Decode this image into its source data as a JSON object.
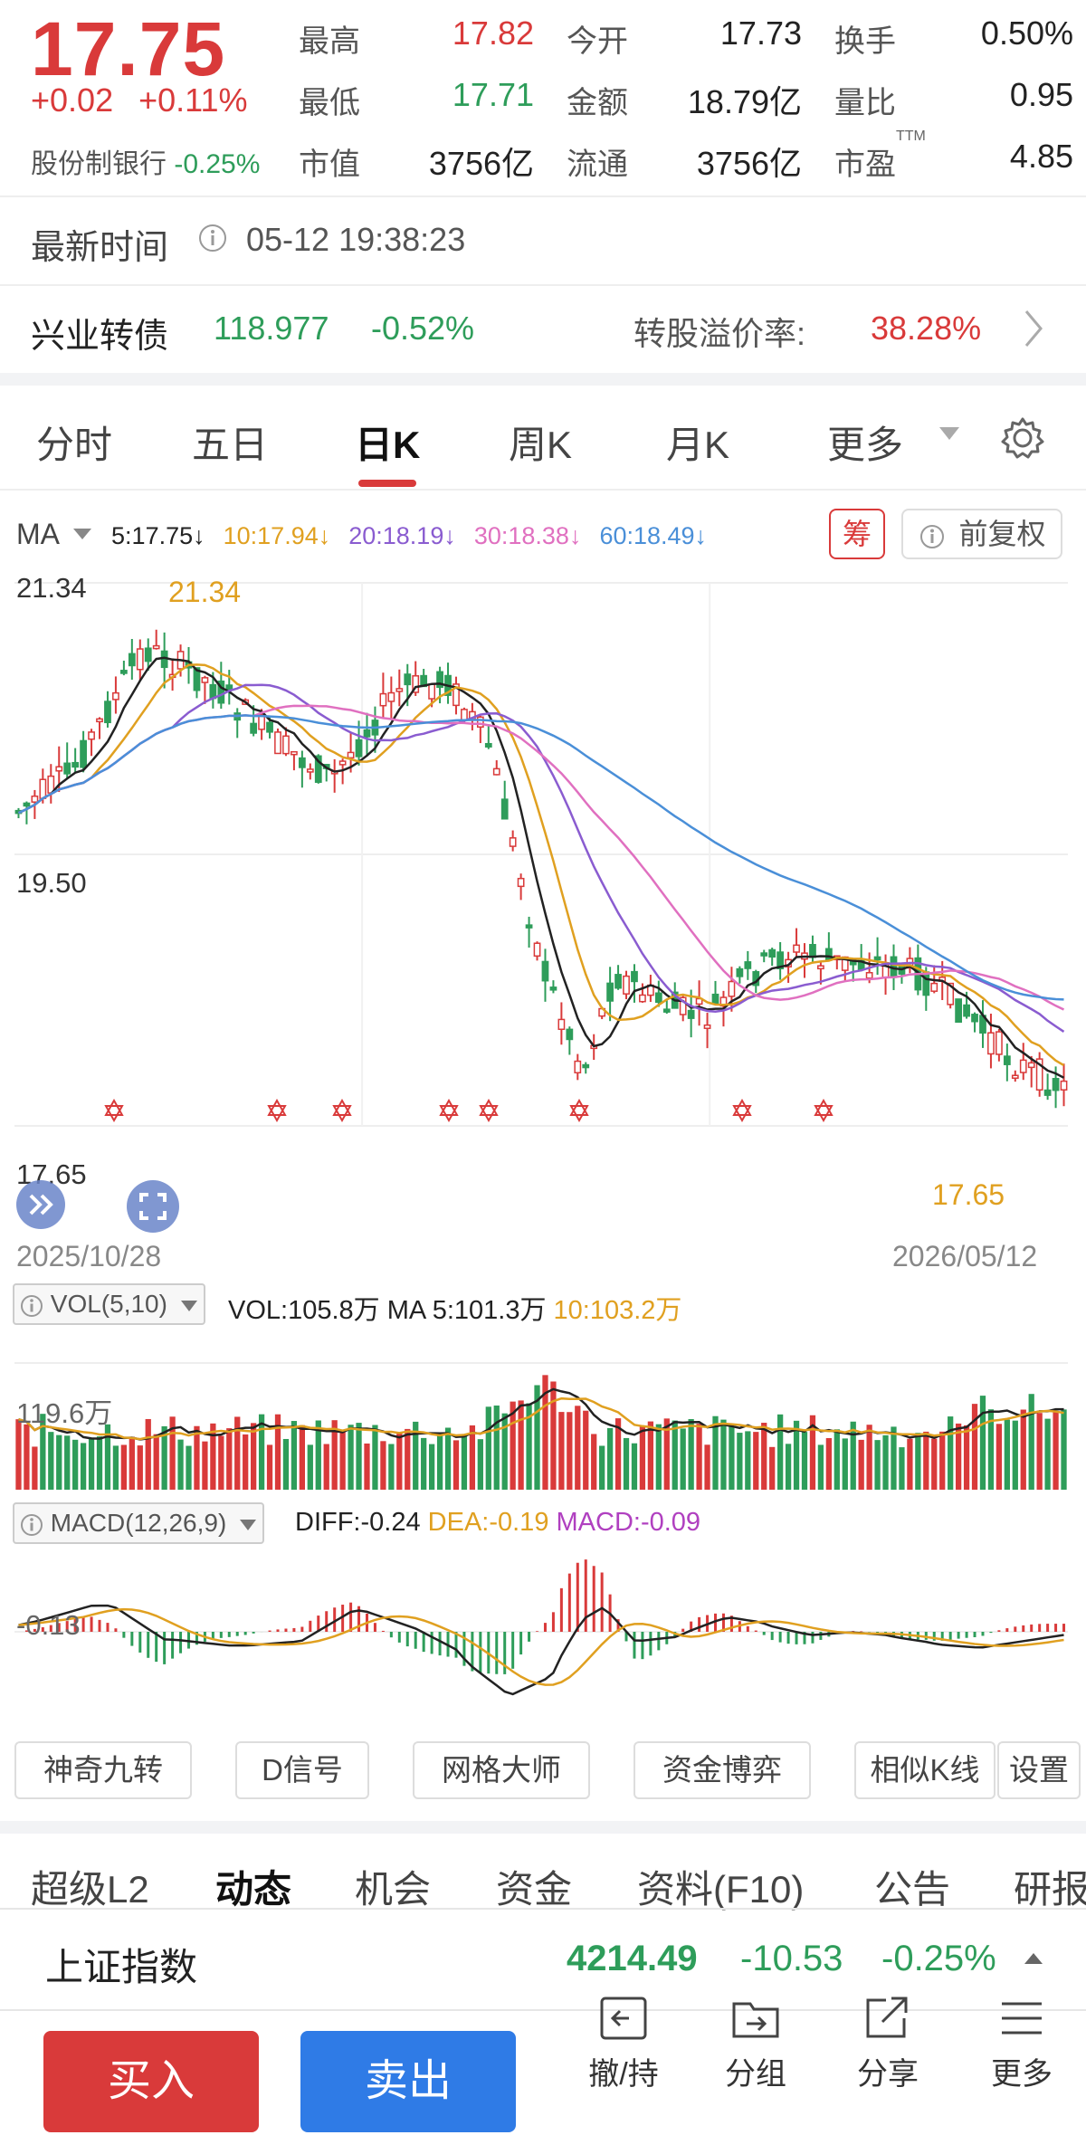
{
  "quote": {
    "price": "17.75",
    "change": "+0.02",
    "change_pct": "+0.11%",
    "sector_name": "股份制银行",
    "sector_pct": "-0.25%",
    "stats": [
      {
        "label": "最高",
        "value": "17.82",
        "tone": "red"
      },
      {
        "label": "今开",
        "value": "17.73",
        "tone": "dark"
      },
      {
        "label": "换手",
        "value": "0.50%",
        "tone": "dark"
      },
      {
        "label": "最低",
        "value": "17.71",
        "tone": "green"
      },
      {
        "label": "金额",
        "value": "18.79亿",
        "tone": "dark"
      },
      {
        "label": "量比",
        "value": "0.95",
        "tone": "dark"
      },
      {
        "label": "市值",
        "value": "3756亿",
        "tone": "dark"
      },
      {
        "label": "流通",
        "value": "3756亿",
        "tone": "dark"
      },
      {
        "label": "市盈",
        "value": "4.85",
        "tone": "dark"
      }
    ],
    "pe_suffix": "TTM"
  },
  "update": {
    "label": "最新时间",
    "time": "05-12 19:38:23"
  },
  "bond": {
    "name": "兴业转债",
    "price": "118.977",
    "pct": "-0.52%",
    "premium_label": "转股溢价率:",
    "premium_value": "38.28%"
  },
  "chart_tabs": [
    "分时",
    "五日",
    "日K",
    "周K",
    "月K",
    "更多"
  ],
  "active_tab": "日K",
  "ma_bar": {
    "label": "MA",
    "items": [
      {
        "text": "5:17.75↓",
        "color": "#222222"
      },
      {
        "text": "10:17.94↓",
        "color": "#e0a020"
      },
      {
        "text": "20:18.19↓",
        "color": "#8a5cd0"
      },
      {
        "text": "30:18.38↓",
        "color": "#e070c0"
      },
      {
        "text": "60:18.49↓",
        "color": "#4a8fd8"
      }
    ],
    "chip_label": "筹",
    "adjust_label": "前复权"
  },
  "kline": {
    "y_high_label": "21.34",
    "y_mid_label": "19.50",
    "y_low_label": "17.65",
    "high_mark": "21.34",
    "low_mark": "17.65",
    "date_start": "2025/10/28",
    "date_end": "2026/05/12"
  },
  "vol": {
    "label": "VOL(5,10)",
    "value": "VOL:105.8万",
    "ma5": "MA 5:101.3万",
    "ma10": "10:103.2万",
    "axis_label": "119.6万"
  },
  "macd": {
    "label": "MACD(12,26,9)",
    "diff": "DIFF:-0.24",
    "dea": "DEA:-0.19",
    "macd": "MACD:-0.09",
    "axis_label": "-0.13"
  },
  "tools": [
    "神奇九转",
    "D信号",
    "网格大师",
    "资金博弈",
    "相似K线",
    "设置"
  ],
  "bottom_tabs": [
    "超级L2",
    "动态",
    "机会",
    "资金",
    "资料(F10)",
    "公告",
    "研报"
  ],
  "index_bar": {
    "name": "上证指数",
    "value": "4214.49",
    "change": "-10.53",
    "pct": "-0.25%"
  },
  "actions": {
    "buy": "买入",
    "sell": "卖出",
    "items": [
      "撤/持",
      "分组",
      "分享",
      "更多"
    ]
  },
  "colors": {
    "up": "#d93a3a",
    "down": "#2e9d5a",
    "ma5": "#222222",
    "ma10": "#e0a020",
    "ma20": "#8a5cd0",
    "ma30": "#e070c0",
    "ma60": "#4a8fd8",
    "sell": "#2f7be6"
  }
}
